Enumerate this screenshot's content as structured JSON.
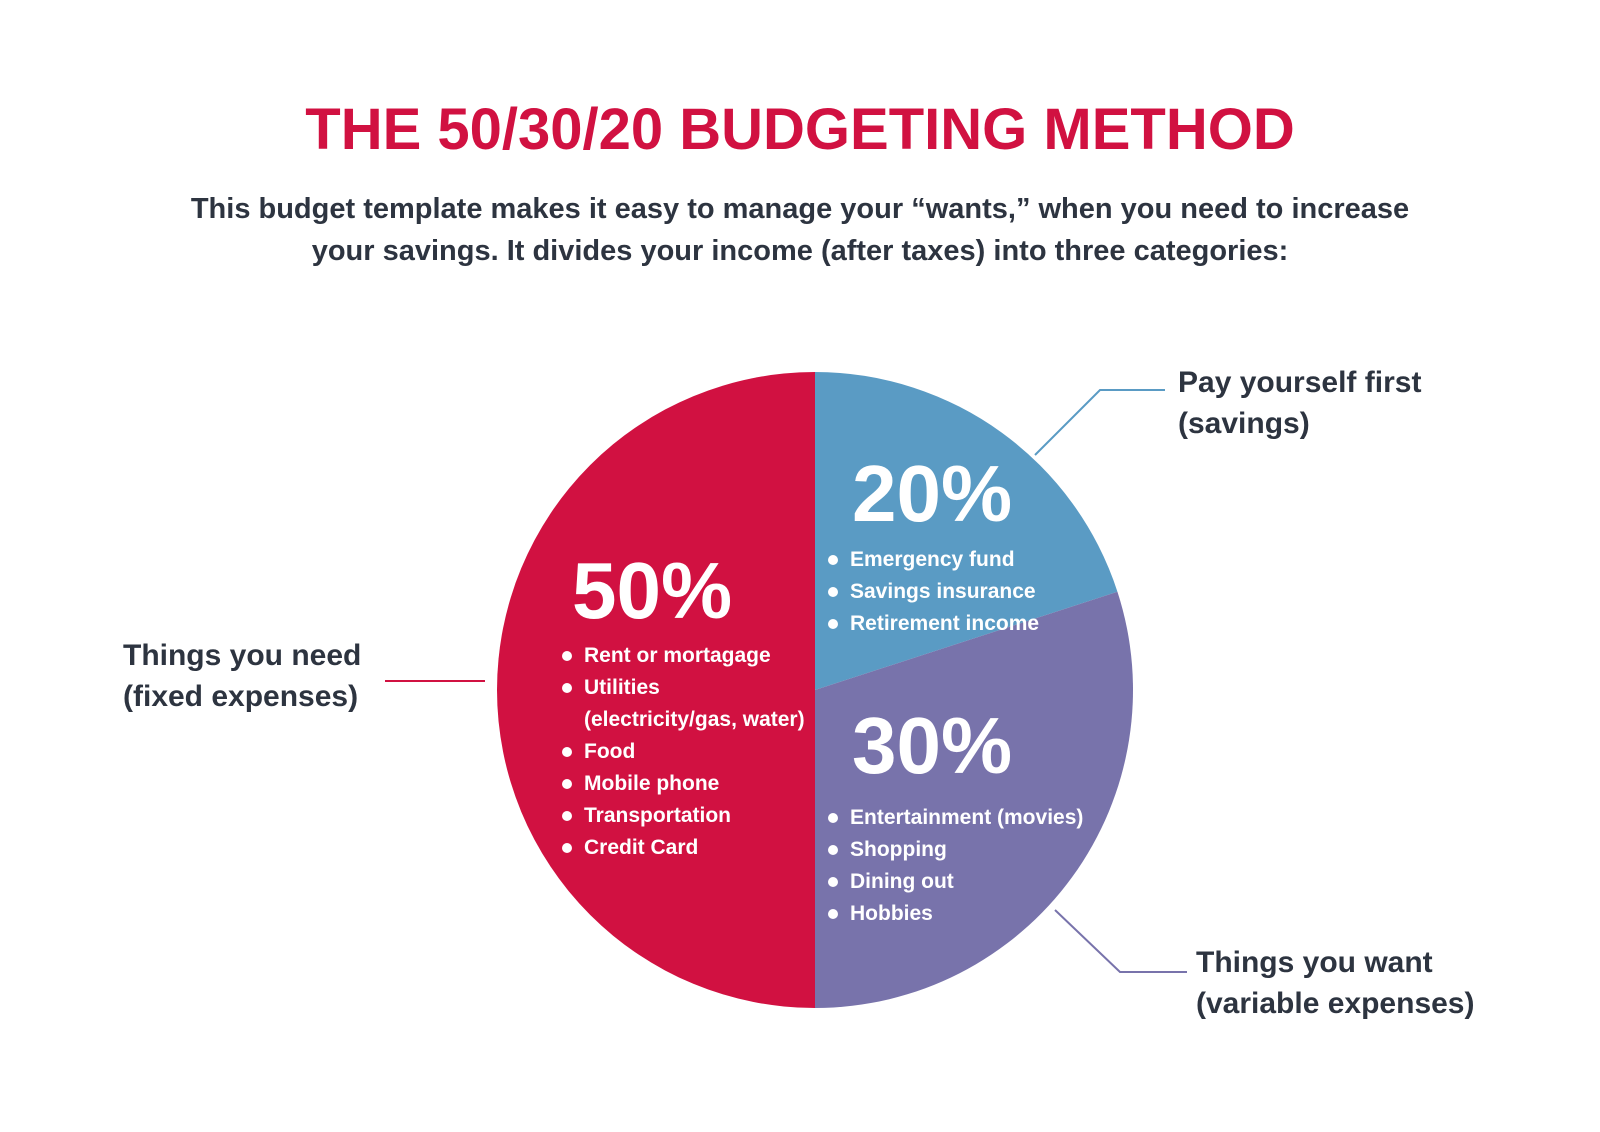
{
  "chart_data": {
    "type": "pie",
    "title": "THE 50/30/20 BUDGETING METHOD",
    "subtitle": "This budget template makes it easy to manage your “wants,” when you need to increase your savings. It divides your income (after taxes) into three categories:",
    "categories": [
      "Things you need (fixed expenses)",
      "Pay yourself first (savings)",
      "Things you want (variable expenses)"
    ],
    "values": [
      50,
      20,
      30
    ],
    "value_labels": [
      "50%",
      "20%",
      "30%"
    ],
    "colors": [
      "#d11141",
      "#5a9bc4",
      "#7873ab"
    ],
    "items": [
      [
        "Rent or mortagage",
        "Utilities (electricity/gas, water)",
        "Food",
        "Mobile phone",
        "Transportation",
        "Credit Card"
      ],
      [
        "Emergency fund",
        "Savings insurance",
        "Retirement income"
      ],
      [
        "Entertainment (movies)",
        "Shopping",
        "Dining out",
        "Hobbies"
      ]
    ]
  }
}
